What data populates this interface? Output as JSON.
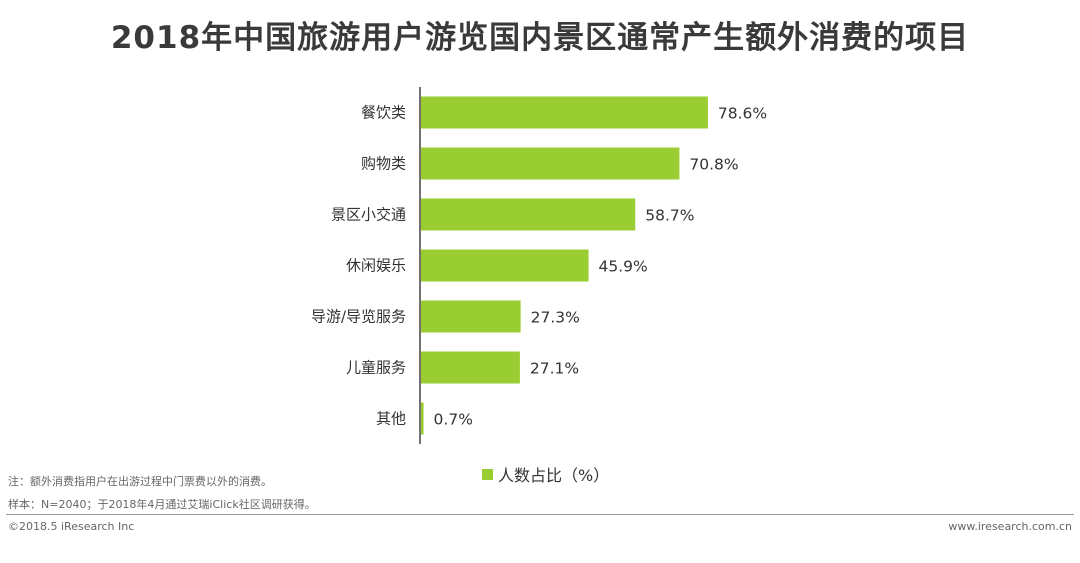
{
  "chart_data": {
    "type": "bar",
    "orientation": "horizontal",
    "title": "2018年中国旅游用户游览国内景区通常产生额外消费的项目",
    "categories": [
      "餐饮类",
      "购物类",
      "景区小交通",
      "休闲娱乐",
      "导游/导览服务",
      "儿童服务",
      "其他"
    ],
    "series": [
      {
        "name": "人数占比（%）",
        "values": [
          78.6,
          70.8,
          58.7,
          45.9,
          27.3,
          27.1,
          0.7
        ]
      }
    ],
    "data_labels": [
      "78.6%",
      "70.8%",
      "58.7%",
      "45.9%",
      "27.3%",
      "27.1%",
      "0.7%"
    ],
    "xlim": [
      0,
      100
    ],
    "grid": false,
    "legend_position": "bottom",
    "bar_color": "#9acd32"
  },
  "notes": {
    "note1": "注：额外消费指用户在出游过程中门票费以外的消费。",
    "note2": "样本：N=2040；于2018年4月通过艾瑞iClick社区调研获得。"
  },
  "footer": {
    "copyright": "©2018.5 iResearch Inc",
    "site": "www.iresearch.com.cn"
  }
}
